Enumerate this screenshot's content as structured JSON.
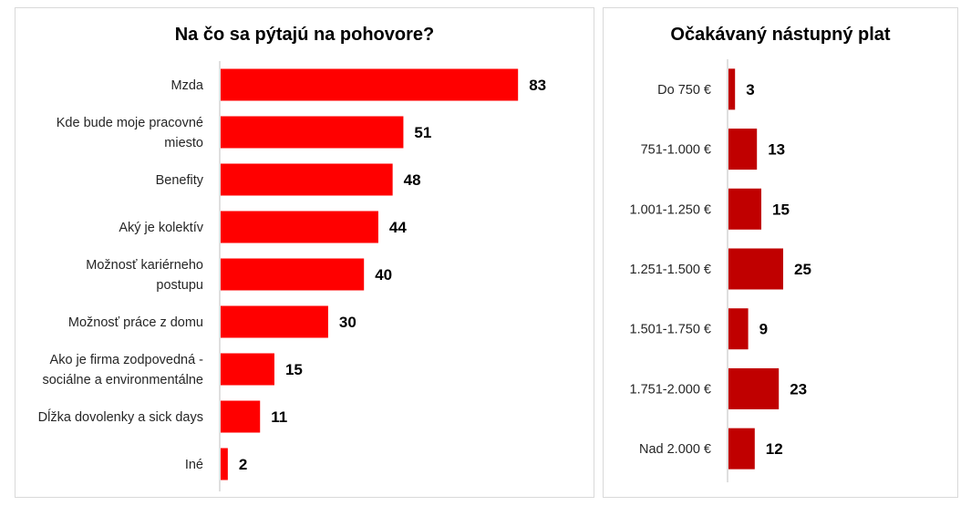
{
  "chart_data": [
    {
      "type": "bar",
      "orientation": "horizontal",
      "title": "Na čo sa pýtajú na pohovore?",
      "categories": [
        [
          "Mzda"
        ],
        [
          "Kde bude moje pracovné",
          "miesto"
        ],
        [
          "Benefity"
        ],
        [
          "Aký je kolektív"
        ],
        [
          "Možnosť kariérneho",
          "postupu"
        ],
        [
          "Možnosť práce z domu"
        ],
        [
          "Ako je firma zodpovedná -",
          "sociálne a environmentálne"
        ],
        [
          "Dĺžka dovolenky a sick days"
        ],
        [
          "Iné"
        ]
      ],
      "values": [
        83,
        51,
        48,
        44,
        40,
        30,
        15,
        11,
        2
      ],
      "xlim": [
        0,
        100
      ],
      "color": "#ff0000",
      "data_labels": true
    },
    {
      "type": "bar",
      "orientation": "horizontal",
      "title": "Očakávaný nástupný plat",
      "categories": [
        [
          "Do 750 €"
        ],
        [
          "751-1.000 €"
        ],
        [
          "1.001-1.250 €"
        ],
        [
          "1.251-1.500 €"
        ],
        [
          "1.501-1.750 €"
        ],
        [
          "1.751-2.000 €"
        ],
        [
          "Nad 2.000 €"
        ]
      ],
      "values": [
        3,
        13,
        15,
        25,
        9,
        23,
        12
      ],
      "xlim": [
        0,
        100
      ],
      "color": "#c00000",
      "data_labels": true
    }
  ]
}
